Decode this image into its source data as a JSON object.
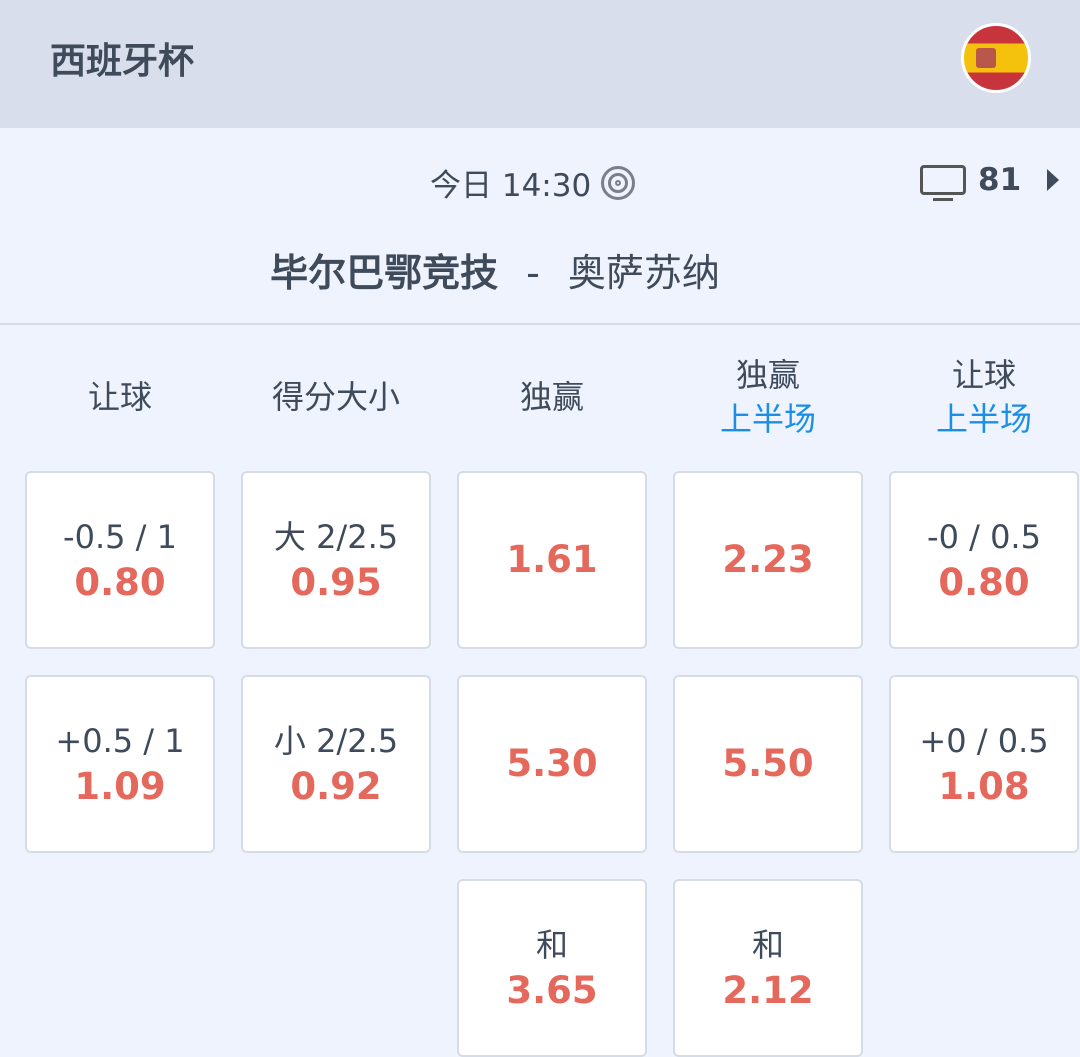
{
  "header": {
    "league": "西班牙杯",
    "flag_icon": "spain-flag"
  },
  "match": {
    "time": "今日 14:30",
    "live_icon": "target-icon",
    "tv_count": "81",
    "home": "毕尔巴鄂竞技",
    "separator": "-",
    "away": "奥萨苏纳"
  },
  "colors": {
    "odds": "#e5685c",
    "accent": "#1a8fe3",
    "text": "#3f4a5a"
  },
  "columns": [
    {
      "title": "让球",
      "sub": "",
      "cells": [
        {
          "line": "-0.5 / 1",
          "odds": "0.80"
        },
        {
          "line": "+0.5 / 1",
          "odds": "1.09"
        }
      ]
    },
    {
      "title": "得分大小",
      "sub": "",
      "cells": [
        {
          "line": "大 2/2.5",
          "odds": "0.95"
        },
        {
          "line": "小 2/2.5",
          "odds": "0.92"
        }
      ]
    },
    {
      "title": "独赢",
      "sub": "",
      "cells": [
        {
          "line": "",
          "odds": "1.61"
        },
        {
          "line": "",
          "odds": "5.30"
        },
        {
          "line": "和",
          "odds": "3.65"
        }
      ]
    },
    {
      "title": "独赢",
      "sub": "上半场",
      "cells": [
        {
          "line": "",
          "odds": "2.23"
        },
        {
          "line": "",
          "odds": "5.50"
        },
        {
          "line": "和",
          "odds": "2.12"
        }
      ]
    },
    {
      "title": "让球",
      "sub": "上半场",
      "cells": [
        {
          "line": "-0 / 0.5",
          "odds": "0.80"
        },
        {
          "line": "+0 / 0.5",
          "odds": "1.08"
        }
      ]
    }
  ]
}
